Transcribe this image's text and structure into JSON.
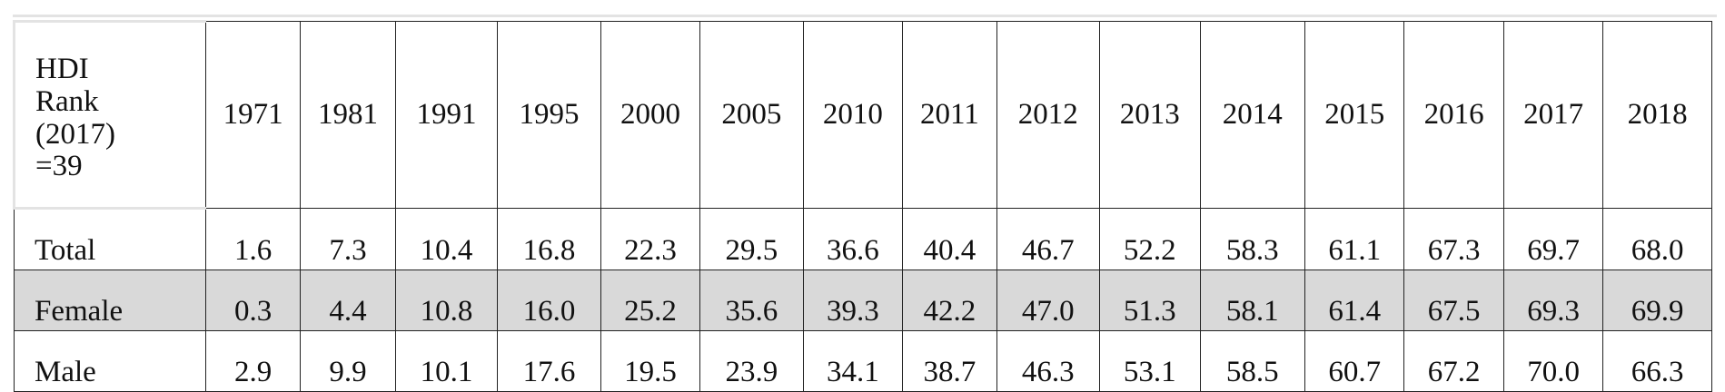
{
  "table": {
    "corner_label": "HDI Rank (2017) =39",
    "columns": [
      "1971",
      "1981",
      "1991",
      "1995",
      "2000",
      "2005",
      "2010",
      "2011",
      "2012",
      "2013",
      "2014",
      "2015",
      "2016",
      "2017",
      "2018"
    ],
    "rows": [
      {
        "label": "Total",
        "values": [
          "1.6",
          "7.3",
          "10.4",
          "16.8",
          "22.3",
          "29.5",
          "36.6",
          "40.4",
          "46.7",
          "52.2",
          "58.3",
          "61.1",
          "67.3",
          "69.7",
          "68.0"
        ]
      },
      {
        "label": "Female",
        "values": [
          "0.3",
          "4.4",
          "10.8",
          "16.0",
          "25.2",
          "35.6",
          "39.3",
          "42.2",
          "47.0",
          "51.3",
          "58.1",
          "61.4",
          "67.5",
          "69.3",
          "69.9"
        ]
      },
      {
        "label": "Male",
        "values": [
          "2.9",
          "9.9",
          "10.1",
          "17.6",
          "19.5",
          "23.9",
          "34.1",
          "38.7",
          "46.3",
          "53.1",
          "58.5",
          "60.7",
          "67.2",
          "70.0",
          "66.3"
        ]
      }
    ],
    "shaded_row_color": "#d9d9d9",
    "border_color": "#222222"
  }
}
